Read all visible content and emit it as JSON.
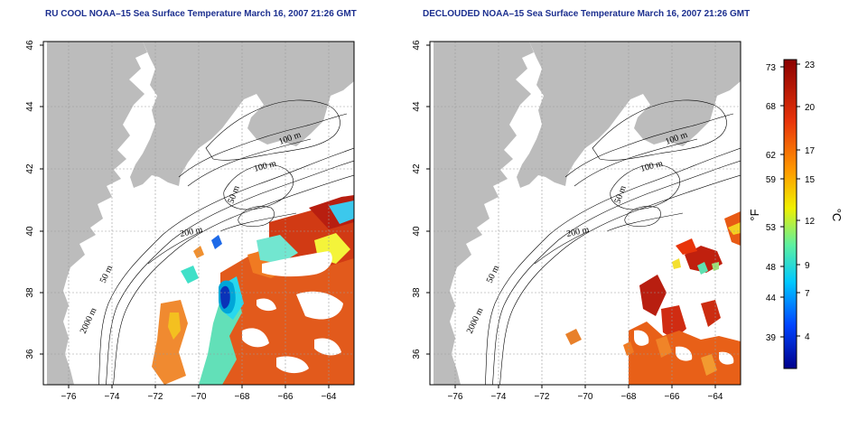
{
  "panels": [
    {
      "title": "RU COOL NOAA–15 Sea Surface Temperature March 16, 2007 21:26 GMT"
    },
    {
      "title": "DECLOUDED NOAA–15 Sea Surface Temperature March 16, 2007 21:26 GMT"
    }
  ],
  "axes": {
    "lon_ticks": [
      "−76",
      "−74",
      "−72",
      "−70",
      "−68",
      "−66",
      "−64"
    ],
    "lat_ticks": [
      "36",
      "38",
      "40",
      "42",
      "44",
      "46"
    ]
  },
  "contour_labels": [
    "100 m",
    "100 m",
    "50 m",
    "200 m",
    "50 m",
    "2000 m"
  ],
  "colorbar": {
    "fahrenheit_unit": "°F",
    "celsius_unit": "°C",
    "fahrenheit_ticks": [
      "73",
      "68",
      "62",
      "59",
      "53",
      "48",
      "44",
      "39"
    ],
    "celsius_ticks": [
      "23",
      "20",
      "17",
      "15",
      "12",
      "9",
      "7",
      "4"
    ],
    "colors": [
      "#00008b",
      "#0044ff",
      "#00c8ff",
      "#5ef0a0",
      "#f0f000",
      "#ff9a00",
      "#e8340a",
      "#8b0000"
    ]
  },
  "colors": {
    "land": "#bcbcbc",
    "title": "#1c2f8f",
    "grid": "#9a9a9a"
  }
}
